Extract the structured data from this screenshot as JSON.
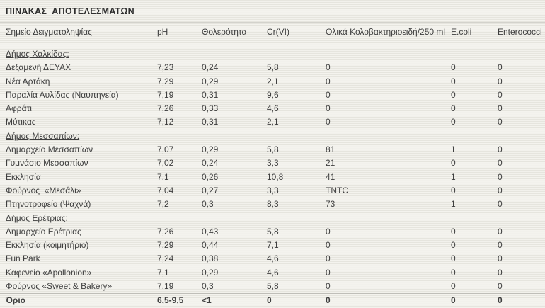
{
  "title": "ΠΙΝΑΚΑΣ  ΑΠΟΤΕΛΕΣΜΑΤΩΝ",
  "colors": {
    "background": "#f1f0ea",
    "text": "#3e3e3e",
    "divider": "#d3d2cc",
    "footer_rule": "#bfbeb8"
  },
  "table": {
    "columns": [
      "Σημείο Δειγματοληψίας",
      "pH",
      "Θολερότητα",
      "Cr(VI)",
      "Ολικά Κολοβακτηριοειδή/250 ml",
      "E.coli",
      "Enterococci"
    ],
    "sections": [
      {
        "label": "Δήμος Χαλκίδας:",
        "rows": [
          [
            "Δεξαμενή ΔΕΥΑΧ",
            "7,23",
            "0,24",
            "5,8",
            "0",
            "0",
            "0"
          ],
          [
            "Νέα Αρτάκη",
            "7,29",
            "0,29",
            "2,1",
            "0",
            "0",
            "0"
          ],
          [
            "Παραλία Αυλίδας (Ναυπηγεία)",
            "7,19",
            "0,31",
            "9,6",
            "0",
            "0",
            "0"
          ],
          [
            "Αφράτι",
            "7,26",
            "0,33",
            "4,6",
            "0",
            "0",
            "0"
          ],
          [
            "Μύτικας",
            "7,12",
            "0,31",
            "2,1",
            "0",
            "0",
            "0"
          ]
        ]
      },
      {
        "label": "Δήμος Μεσσαπίων:",
        "rows": [
          [
            "Δημαρχείο Μεσσαπίων",
            "7,07",
            "0,29",
            "5,8",
            "81",
            "1",
            "0"
          ],
          [
            "Γυμνάσιο Μεσσαπίων",
            "7,02",
            "0,24",
            "3,3",
            "21",
            "0",
            "0"
          ],
          [
            "Εκκλησία",
            "7,1",
            "0,26",
            "10,8",
            "41",
            "1",
            "0"
          ],
          [
            "Φούρνος  «Μεσάλι»",
            "7,04",
            "0,27",
            "3,3",
            "TNTC",
            "0",
            "0"
          ],
          [
            "Πτηνοτροφείο (Ψαχνά)",
            "7,2",
            "0,3",
            "8,3",
            "73",
            "1",
            "0"
          ]
        ]
      },
      {
        "label": "Δήμος Ερέτριας:",
        "rows": [
          [
            "Δημαρχείο Ερέτριας",
            "7,26",
            "0,43",
            "5,8",
            "0",
            "0",
            "0"
          ],
          [
            "Εκκλησία (κοιμητήριο)",
            "7,29",
            "0,44",
            "7,1",
            "0",
            "0",
            "0"
          ],
          [
            "Fun Park",
            "7,24",
            "0,38",
            "4,6",
            "0",
            "0",
            "0"
          ],
          [
            "Καφενείο «Apollonion»",
            "7,1",
            "0,29",
            "4,6",
            "0",
            "0",
            "0"
          ],
          [
            "Φούρνος «Sweet & Bakery»",
            "7,19",
            "0,3",
            "5,8",
            "0",
            "0",
            "0"
          ]
        ]
      }
    ],
    "footer": [
      "Όριο",
      "6,5-9,5",
      "<1",
      "0",
      "0",
      "0",
      "0"
    ]
  }
}
